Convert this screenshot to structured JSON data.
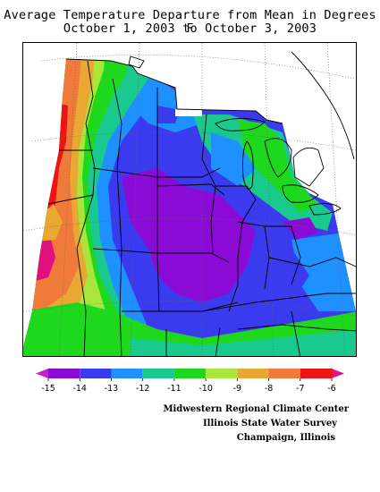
{
  "title": {
    "line1": "Average Temperature Departure from Mean in Degrees F",
    "line2": "October 1, 2003 to October 3, 2003"
  },
  "legend": {
    "labels": [
      "-15",
      "-14",
      "-13",
      "-12",
      "-11",
      "-10",
      "-9",
      "-8",
      "-7",
      "-6"
    ],
    "colors": [
      "#c81ed0",
      "#8a0ad6",
      "#3a3aee",
      "#1e90ff",
      "#19c98d",
      "#1ed81e",
      "#a8e63c",
      "#e8a832",
      "#f07a3a",
      "#ee1414",
      "#e0107e"
    ]
  },
  "credits": {
    "line1": "Midwestern Regional Climate Center",
    "line2": "Illinois State Water Survey",
    "line3": "Champaign, Illinois"
  }
}
